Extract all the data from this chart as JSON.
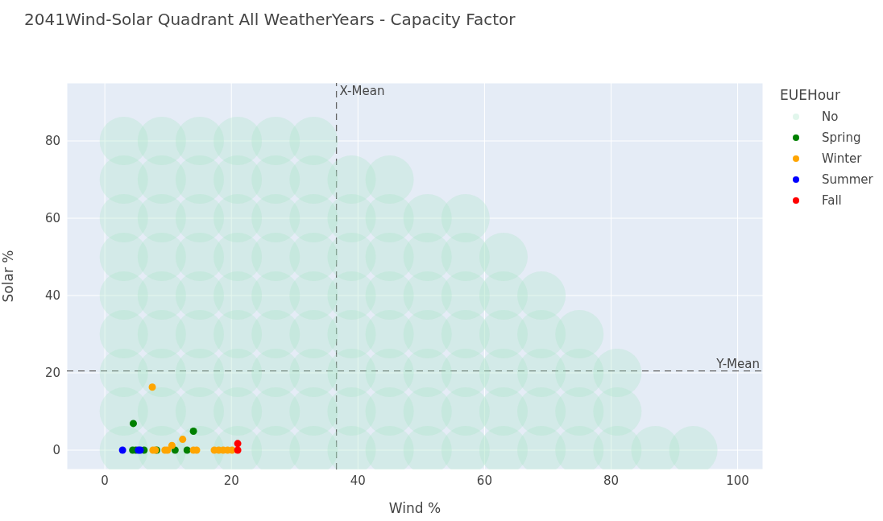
{
  "chart_data": {
    "type": "scatter",
    "title": "2041Wind-Solar Quadrant All WeatherYears - Capacity Factor",
    "xlabel": "Wind %",
    "ylabel": "Solar %",
    "legend_title": "EUEHour",
    "xlim": [
      -6,
      104
    ],
    "ylim": [
      -5,
      95
    ],
    "xticks": [
      0,
      20,
      40,
      60,
      80,
      100
    ],
    "yticks": [
      0,
      20,
      40,
      60,
      80
    ],
    "grid": true,
    "legend": "top right",
    "marker": "circle",
    "ref_lines": [
      {
        "axis": "x",
        "value": 36.6,
        "label": "X-Mean",
        "line_style": "dashed",
        "color": "#666666"
      },
      {
        "axis": "y",
        "value": 20.5,
        "label": "Y-Mean",
        "line_style": "dashed",
        "color": "#666666"
      }
    ],
    "series": [
      {
        "name": "No",
        "color": "#a8e4c8",
        "x": [
          3,
          9,
          15,
          21,
          27,
          33,
          3,
          9,
          15,
          21,
          27,
          33,
          39,
          45,
          3,
          9,
          15,
          21,
          27,
          33,
          39,
          45,
          51,
          57,
          3,
          9,
          15,
          21,
          27,
          33,
          39,
          45,
          51,
          57,
          63,
          3,
          9,
          15,
          21,
          27,
          33,
          39,
          45,
          51,
          57,
          63,
          69,
          3,
          9,
          15,
          21,
          27,
          33,
          39,
          45,
          51,
          57,
          63,
          69,
          75,
          3,
          9,
          15,
          21,
          27,
          33,
          39,
          45,
          51,
          57,
          63,
          69,
          75,
          81,
          3,
          9,
          15,
          21,
          27,
          33,
          39,
          45,
          51,
          57,
          63,
          69,
          75,
          81,
          3,
          9,
          15,
          21,
          27,
          33,
          39,
          45,
          51,
          57,
          63,
          69,
          75,
          81,
          87,
          93
        ],
        "values": [
          80,
          80,
          80,
          80,
          80,
          80,
          70,
          70,
          70,
          70,
          70,
          70,
          70,
          70,
          60,
          60,
          60,
          60,
          60,
          60,
          60,
          60,
          60,
          60,
          50,
          50,
          50,
          50,
          50,
          50,
          50,
          50,
          50,
          50,
          50,
          40,
          40,
          40,
          40,
          40,
          40,
          40,
          40,
          40,
          40,
          40,
          40,
          30,
          30,
          30,
          30,
          30,
          30,
          30,
          30,
          30,
          30,
          30,
          30,
          30,
          20,
          20,
          20,
          20,
          20,
          20,
          20,
          20,
          20,
          20,
          20,
          20,
          20,
          20,
          10,
          10,
          10,
          10,
          10,
          10,
          10,
          10,
          10,
          10,
          10,
          10,
          10,
          10,
          0,
          0,
          0,
          0,
          0,
          0,
          0,
          0,
          0,
          0,
          0,
          0,
          0,
          0,
          0,
          0
        ]
      },
      {
        "name": "Spring",
        "color": "#008000",
        "x": [
          4.5,
          4.4,
          4.9,
          6.2,
          8.2,
          11.1,
          13.0,
          14.0
        ],
        "values": [
          6.9,
          0,
          0,
          0,
          0,
          0,
          0,
          4.9
        ]
      },
      {
        "name": "Winter",
        "color": "#ffa500",
        "x": [
          7.5,
          7.6,
          8.0,
          9.5,
          9.9,
          10.6,
          12.3,
          14.0,
          14.5,
          17.3,
          18.0,
          18.7,
          19.4,
          20.1
        ],
        "values": [
          16.3,
          0,
          0,
          0,
          0,
          1.2,
          2.8,
          0,
          0,
          0,
          0,
          0,
          0,
          0
        ]
      },
      {
        "name": "Summer",
        "color": "#0000ff",
        "x": [
          2.8,
          5.3,
          5.6
        ],
        "values": [
          0,
          0,
          0
        ]
      },
      {
        "name": "Fall",
        "color": "#ff0000",
        "x": [
          21.0,
          21.0
        ],
        "values": [
          0,
          1.7
        ]
      }
    ]
  }
}
